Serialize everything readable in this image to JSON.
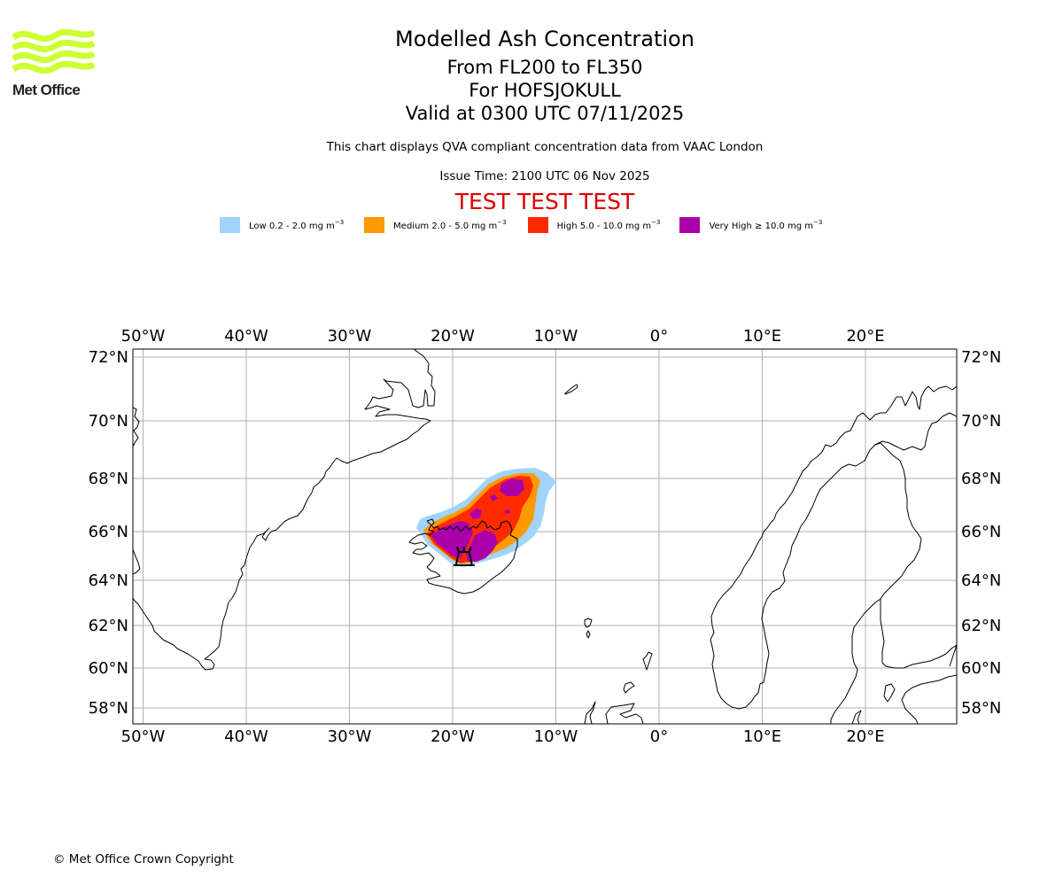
{
  "logo": {
    "text": "Met Office",
    "color": "#ccff33"
  },
  "header": {
    "title": "Modelled Ash Concentration",
    "levels": "From FL200 to FL350",
    "volcano": "For HOFSJOKULL",
    "valid": "Valid at 0300 UTC 07/11/2025",
    "description": "This chart displays QVA compliant concentration data from VAAC London",
    "issue_time": "Issue Time: 2100 UTC 06 Nov 2025",
    "test_banner": "TEST TEST TEST",
    "test_color": "#dd0000"
  },
  "legend": [
    {
      "label": "Low 0.2 - 2.0 mg m",
      "exp": "−3",
      "color": "#a0d4fc"
    },
    {
      "label": "Medium 2.0 - 5.0 mg m",
      "exp": "−3",
      "color": "#ff9900"
    },
    {
      "label": "High 5.0 - 10.0 mg m",
      "exp": "−3",
      "color": "#ff2a00"
    },
    {
      "label": "Very High ≥ 10.0 mg m",
      "exp": "−3",
      "color": "#aa00aa"
    }
  ],
  "footer": {
    "copyright": "© Met Office Crown Copyright"
  },
  "chart_data": {
    "type": "map",
    "projection": "Mercator",
    "extent": {
      "lon": [
        -51,
        28.8
      ],
      "lat": [
        57.3,
        72.3
      ]
    },
    "grid": true,
    "lon_ticks": [
      {
        "value": -50,
        "label": "50°W"
      },
      {
        "value": -40,
        "label": "40°W"
      },
      {
        "value": -30,
        "label": "30°W"
      },
      {
        "value": -20,
        "label": "20°W"
      },
      {
        "value": -10,
        "label": "10°W"
      },
      {
        "value": 0,
        "label": "0°"
      },
      {
        "value": 10,
        "label": "10°E"
      },
      {
        "value": 20,
        "label": "20°E"
      }
    ],
    "lat_ticks": [
      {
        "value": 72,
        "label": "72°N"
      },
      {
        "value": 70,
        "label": "70°N"
      },
      {
        "value": 68,
        "label": "68°N"
      },
      {
        "value": 66,
        "label": "66°N"
      },
      {
        "value": 64,
        "label": "64°N"
      },
      {
        "value": 62,
        "label": "62°N"
      },
      {
        "value": 60,
        "label": "60°N"
      },
      {
        "value": 58,
        "label": "58°N"
      }
    ],
    "volcano_marker": {
      "name": "HOFSJOKULL",
      "lon": -18.9,
      "lat": 64.8
    },
    "ash_levels": [
      {
        "level": "Low",
        "color": "#a0d4fc"
      },
      {
        "level": "Medium",
        "color": "#ff9900"
      },
      {
        "level": "High",
        "color": "#ff2a00"
      },
      {
        "level": "Very High",
        "color": "#aa00aa"
      }
    ]
  }
}
